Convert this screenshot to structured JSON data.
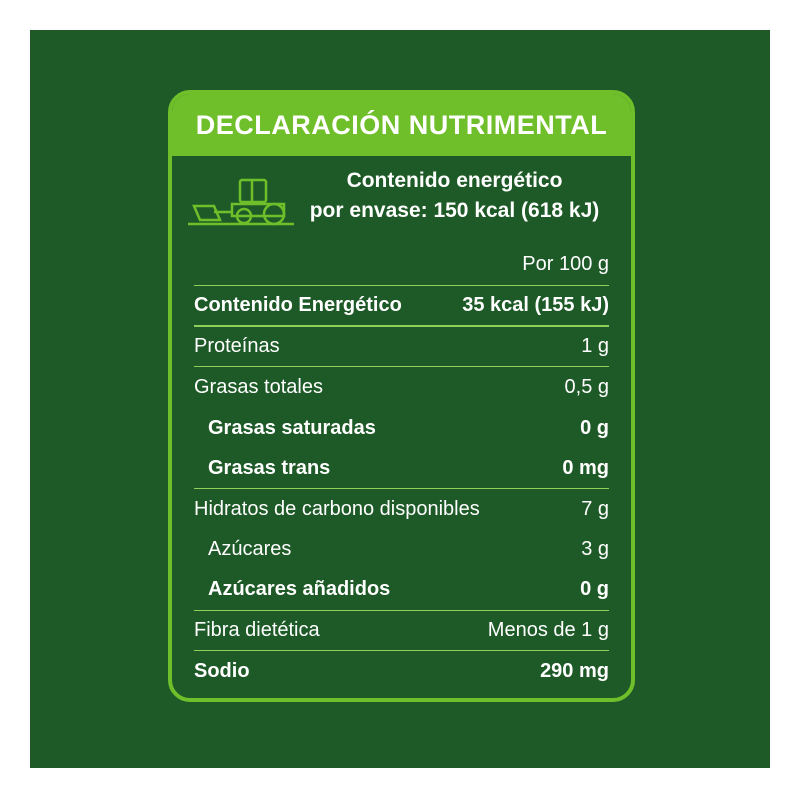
{
  "title": "DECLARACIÓN NUTRIMENTAL",
  "energy_line1": "Contenido energético",
  "energy_line2": "por envase: 150 kcal (618 kJ)",
  "icon": "tractor-icon",
  "colors": {
    "background": "#1e5a27",
    "accent": "#6fbf2a",
    "text": "#ffffff"
  },
  "column_header": "Por 100 g",
  "rows": [
    {
      "name": "Contenido Energético",
      "value": "35 kcal (155 kJ)"
    },
    {
      "name": "Proteínas",
      "value": "1 g"
    },
    {
      "name": "Grasas totales",
      "value": "0,5 g"
    },
    {
      "name": "Grasas saturadas",
      "value": "0 g"
    },
    {
      "name": "Grasas trans",
      "value": "0 mg"
    },
    {
      "name": "Hidratos de carbono disponibles",
      "value": "7 g"
    },
    {
      "name": "Azúcares",
      "value": "3 g"
    },
    {
      "name": "Azúcares añadidos",
      "value": "0 g"
    },
    {
      "name": "Fibra dietética",
      "value": "Menos de 1 g"
    },
    {
      "name": "Sodio",
      "value": "290 mg"
    }
  ]
}
